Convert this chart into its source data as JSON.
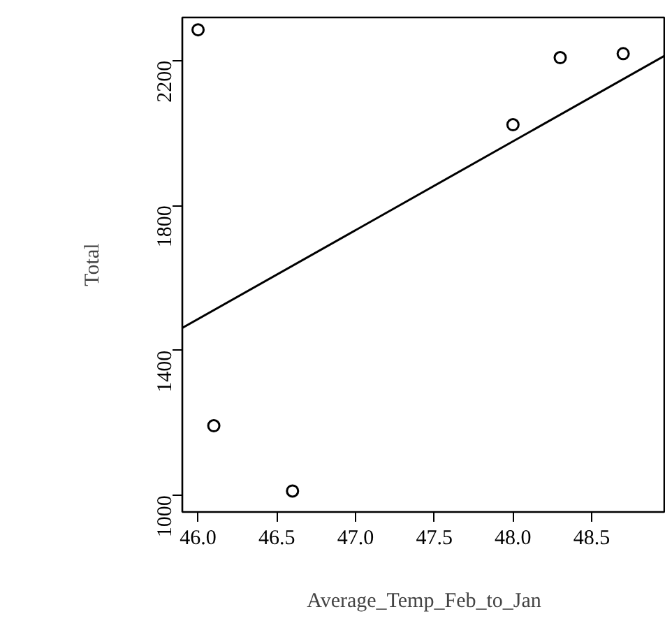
{
  "chart_data": {
    "type": "scatter",
    "xlabel": "Average_Temp_Feb_to_Jan",
    "ylabel": "Total",
    "xlim": [
      45.9,
      48.97
    ],
    "ylim": [
      954,
      2319
    ],
    "xticks": [
      {
        "value": 46,
        "label": "46.0"
      },
      {
        "value": 46.5,
        "label": "46.5"
      },
      {
        "value": 47,
        "label": "47.0"
      },
      {
        "value": 47.5,
        "label": "47.5"
      },
      {
        "value": 48,
        "label": "48.0"
      },
      {
        "value": 48.5,
        "label": "48.5"
      }
    ],
    "yticks": [
      1000,
      1400,
      1800,
      2200
    ],
    "grid": false,
    "series": [
      {
        "marker": "circle",
        "color": "#000000",
        "x": [
          46.0,
          46.1,
          46.6,
          48.0,
          48.3,
          48.7
        ],
        "values": [
          2285,
          1192,
          1012,
          2023,
          2208,
          2219
        ]
      },
      {
        "type": "line",
        "color": "#000000",
        "line_style": "solid",
        "x": [
          45.9,
          48.97
        ],
        "values": [
          1462,
          2215
        ]
      }
    ]
  }
}
